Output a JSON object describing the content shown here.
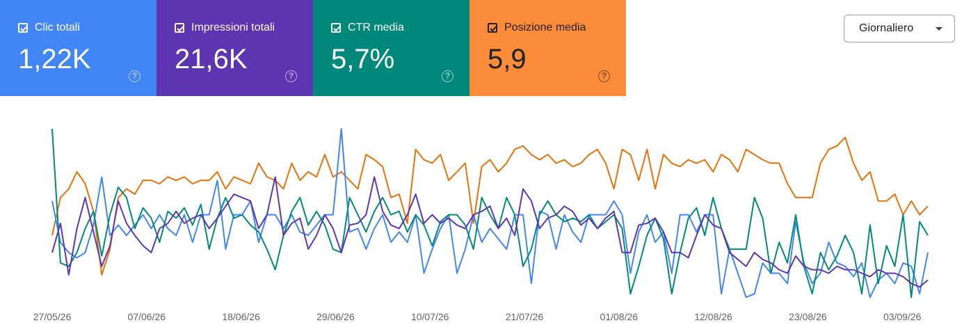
{
  "metrics": [
    {
      "key": "clicks",
      "label": "Clic totali",
      "value": "1,22K",
      "bg": "#4285f4",
      "text": "#ffffff",
      "checked": true
    },
    {
      "key": "impressions",
      "label": "Impressioni totali",
      "value": "21,6K",
      "bg": "#5e35b1",
      "text": "#ffffff",
      "checked": true
    },
    {
      "key": "ctr",
      "label": "CTR media",
      "value": "5,7%",
      "bg": "#00897b",
      "text": "#ffffff",
      "checked": true
    },
    {
      "key": "position",
      "label": "Posizione media",
      "value": "5,9",
      "bg": "#fb8c3a",
      "text": "#202124",
      "checked": true
    }
  ],
  "help_icon": "?",
  "dropdown": {
    "label": "Giornaliero"
  },
  "chart_data": {
    "type": "line",
    "x_ticks": [
      "27/05/26",
      "07/06/26",
      "18/06/26",
      "29/06/26",
      "10/07/26",
      "21/07/26",
      "01/08/26",
      "12/08/26",
      "23/08/26",
      "03/09/26"
    ],
    "grid": false,
    "scale": "relative (no y-axis shown)",
    "series": [
      {
        "name": "Posizione media",
        "color": "#e8710a",
        "values": [
          62,
          40,
          35,
          25,
          32,
          48,
          85,
          70,
          40,
          35,
          38,
          30,
          30,
          32,
          28,
          30,
          28,
          32,
          30,
          30,
          25,
          35,
          28,
          30,
          32,
          20,
          28,
          30,
          35,
          20,
          30,
          25,
          28,
          15,
          28,
          25,
          30,
          35,
          15,
          18,
          22,
          40,
          38,
          55,
          12,
          18,
          20,
          15,
          30,
          25,
          20,
          55,
          22,
          18,
          25,
          20,
          12,
          10,
          15,
          18,
          15,
          20,
          18,
          22,
          20,
          15,
          12,
          20,
          35,
          12,
          15,
          30,
          12,
          35,
          15,
          20,
          22,
          18,
          20,
          18,
          25,
          15,
          18,
          25,
          12,
          15,
          18,
          20,
          20,
          32,
          40,
          40,
          40,
          20,
          12,
          10,
          5,
          20,
          30,
          25,
          42,
          42,
          38,
          50,
          42,
          50,
          45
        ]
      },
      {
        "name": "Clic totali",
        "color": "#4285f4",
        "values": [
          42,
          66,
          72,
          75,
          72,
          56,
          28,
          62,
          56,
          62,
          56,
          50,
          58,
          50,
          58,
          62,
          50,
          66,
          50,
          50,
          30,
          70,
          50,
          50,
          42,
          66,
          50,
          50,
          58,
          50,
          60,
          62,
          56,
          50,
          50,
          0,
          60,
          58,
          70,
          58,
          50,
          66,
          60,
          66,
          50,
          84,
          70,
          58,
          50,
          84,
          70,
          50,
          66,
          58,
          64,
          70,
          50,
          50,
          90,
          48,
          50,
          70,
          50,
          60,
          66,
          50,
          50,
          50,
          42,
          50,
          84,
          60,
          50,
          66,
          60,
          84,
          50,
          50,
          60,
          50,
          50,
          96,
          70,
          84,
          98,
          96,
          78,
          84,
          84,
          90,
          54,
          78,
          90,
          84,
          66,
          78,
          80,
          86,
          78,
          98,
          88,
          84,
          90,
          78,
          80,
          96,
          72
        ]
      },
      {
        "name": "CTR media",
        "color": "#00897b",
        "values": [
          0,
          78,
          80,
          72,
          58,
          48,
          74,
          50,
          34,
          40,
          58,
          46,
          52,
          66,
          48,
          52,
          46,
          56,
          44,
          70,
          52,
          40,
          52,
          50,
          56,
          60,
          70,
          82,
          62,
          48,
          40,
          56,
          48,
          56,
          70,
          72,
          40,
          50,
          60,
          48,
          40,
          50,
          48,
          60,
          50,
          56,
          68,
          54,
          50,
          50,
          56,
          70,
          40,
          50,
          58,
          40,
          50,
          80,
          70,
          50,
          42,
          50,
          54,
          52,
          54,
          50,
          58,
          54,
          50,
          58,
          96,
          80,
          62,
          52,
          64,
          96,
          72,
          52,
          46,
          62,
          40,
          58,
          70,
          70,
          70,
          40,
          52,
          84,
          66,
          78,
          50,
          80,
          96,
          72,
          82,
          74,
          62,
          72,
          96,
          56,
          90,
          68,
          80,
          50,
          98,
          54,
          62
        ]
      },
      {
        "name": "Impressioni totali",
        "color": "#5e35b1",
        "values": [
          72,
          55,
          85,
          58,
          40,
          60,
          80,
          68,
          42,
          55,
          62,
          68,
          72,
          58,
          55,
          48,
          55,
          52,
          50,
          58,
          52,
          45,
          38,
          40,
          42,
          58,
          50,
          28,
          62,
          55,
          52,
          70,
          62,
          50,
          58,
          72,
          56,
          55,
          50,
          28,
          48,
          56,
          58,
          50,
          38,
          55,
          50,
          55,
          52,
          56,
          58,
          50,
          48,
          45,
          58,
          52,
          62,
          35,
          42,
          58,
          52,
          50,
          45,
          48,
          56,
          52,
          58,
          52,
          48,
          72,
          72,
          56,
          55,
          52,
          60,
          72,
          72,
          75,
          62,
          50,
          56,
          58,
          72,
          76,
          80,
          72,
          76,
          78,
          82,
          84,
          74,
          80,
          82,
          82,
          84,
          80,
          82,
          82,
          84,
          86,
          82,
          84,
          84,
          86,
          90,
          92,
          88
        ]
      }
    ]
  }
}
